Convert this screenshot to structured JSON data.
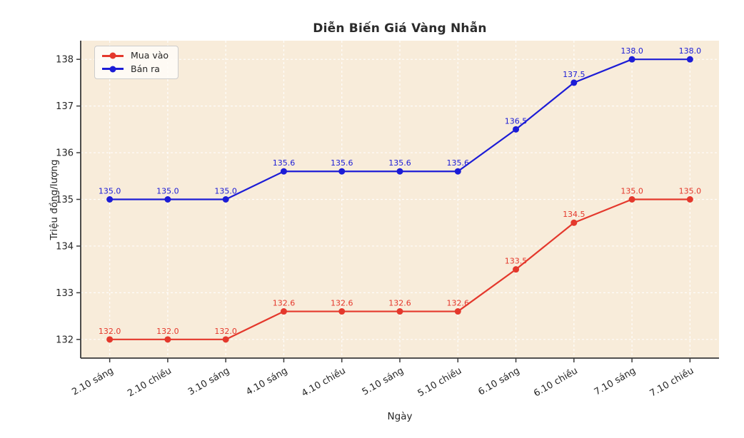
{
  "figure": {
    "background": "#ffffff",
    "plot_background": "#f8ecda",
    "spine_color": "#3a3a3a",
    "tick_label_color": "#262626",
    "legend": {
      "items": [
        {
          "label": "Mua vào",
          "color": "#e4382c"
        },
        {
          "label": "Bán ra",
          "color": "#1c1cd6"
        }
      ]
    }
  },
  "chart_data": {
    "type": "line",
    "title": "Diễn Biến Giá Vàng Nhẫn",
    "xlabel": "Ngày",
    "ylabel": "Triệu đồng/lượng",
    "categories": [
      "2.10 sáng",
      "2.10 chiều",
      "3.10 sáng",
      "4.10 sáng",
      "4.10 chiều",
      "5.10 sáng",
      "5.10 chiều",
      "6.10 sáng",
      "6.10 chiều",
      "7.10 sáng",
      "7.10 chiều"
    ],
    "series": [
      {
        "name": "Mua vào",
        "color": "#e4382c",
        "values": [
          132.0,
          132.0,
          132.0,
          132.6,
          132.6,
          132.6,
          132.6,
          133.5,
          134.5,
          135.0,
          135.0
        ]
      },
      {
        "name": "Bán ra",
        "color": "#1c1cd6",
        "values": [
          135.0,
          135.0,
          135.0,
          135.6,
          135.6,
          135.6,
          135.6,
          136.5,
          137.5,
          138.0,
          138.0
        ]
      }
    ],
    "yticks": [
      132,
      133,
      134,
      135,
      136,
      137,
      138
    ],
    "ylim": [
      131.6,
      138.4
    ],
    "grid": true,
    "grid_color": "#ffffff",
    "grid_style": "dashed",
    "legend_position": "upper left",
    "value_labels": true,
    "value_label_decimals": 1,
    "x_tick_rotation": 30
  }
}
